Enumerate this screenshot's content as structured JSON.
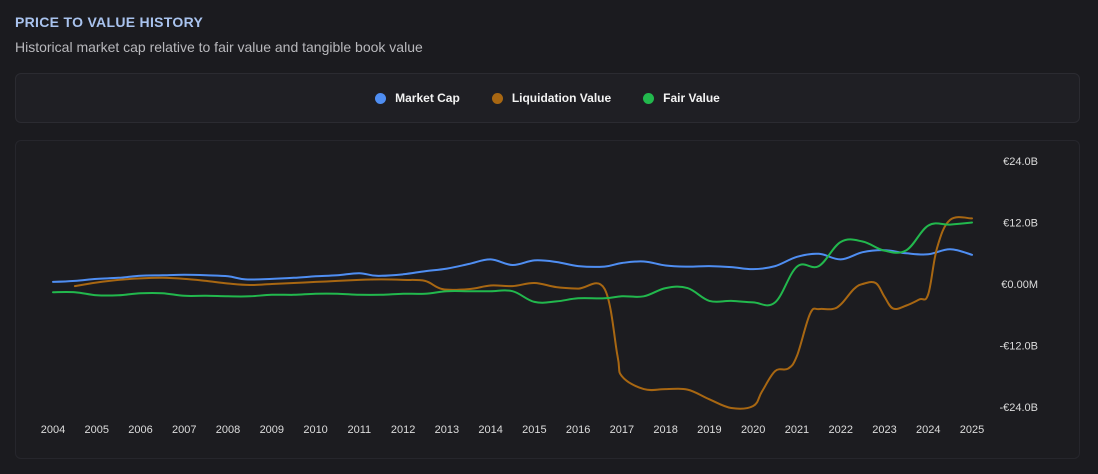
{
  "header": {
    "title": "PRICE TO VALUE HISTORY",
    "subtitle": "Historical market cap relative to fair value and tangible book value"
  },
  "chart_data": {
    "type": "line",
    "title": "PRICE TO VALUE HISTORY",
    "ylim": [
      -24,
      24
    ],
    "y_ticks": [
      {
        "value": 24,
        "label": "€24.0B"
      },
      {
        "value": 12,
        "label": "€12.0B"
      },
      {
        "value": 0,
        "label": "€0.00M"
      },
      {
        "value": -12,
        "label": "-€12.0B"
      },
      {
        "value": -24,
        "label": "-€24.0B"
      }
    ],
    "xlim": [
      2004,
      2025
    ],
    "x_ticks": [
      "2004",
      "2005",
      "2006",
      "2007",
      "2008",
      "2009",
      "2010",
      "2011",
      "2012",
      "2013",
      "2014",
      "2015",
      "2016",
      "2017",
      "2018",
      "2019",
      "2020",
      "2021",
      "2022",
      "2023",
      "2024",
      "2025"
    ],
    "series": [
      {
        "name": "Market Cap",
        "color": "#4f8ef2",
        "points": [
          [
            2004.0,
            0.4
          ],
          [
            2004.5,
            0.6
          ],
          [
            2005.0,
            1.0
          ],
          [
            2005.5,
            1.2
          ],
          [
            2006.0,
            1.6
          ],
          [
            2006.5,
            1.7
          ],
          [
            2007.0,
            1.8
          ],
          [
            2007.5,
            1.7
          ],
          [
            2008.0,
            1.5
          ],
          [
            2008.4,
            0.9
          ],
          [
            2009.0,
            1.0
          ],
          [
            2009.5,
            1.2
          ],
          [
            2010.0,
            1.5
          ],
          [
            2010.5,
            1.7
          ],
          [
            2011.0,
            2.1
          ],
          [
            2011.4,
            1.6
          ],
          [
            2012.0,
            1.9
          ],
          [
            2012.5,
            2.5
          ],
          [
            2013.0,
            3.0
          ],
          [
            2013.5,
            3.9
          ],
          [
            2014.0,
            4.8
          ],
          [
            2014.5,
            3.7
          ],
          [
            2015.0,
            4.6
          ],
          [
            2015.5,
            4.3
          ],
          [
            2016.0,
            3.5
          ],
          [
            2016.6,
            3.4
          ],
          [
            2017.0,
            4.1
          ],
          [
            2017.5,
            4.4
          ],
          [
            2018.0,
            3.6
          ],
          [
            2018.5,
            3.4
          ],
          [
            2019.0,
            3.5
          ],
          [
            2019.5,
            3.3
          ],
          [
            2020.0,
            2.9
          ],
          [
            2020.5,
            3.5
          ],
          [
            2021.0,
            5.3
          ],
          [
            2021.5,
            5.9
          ],
          [
            2022.0,
            4.8
          ],
          [
            2022.5,
            6.2
          ],
          [
            2023.0,
            6.6
          ],
          [
            2023.5,
            6.0
          ],
          [
            2024.0,
            5.8
          ],
          [
            2024.5,
            6.8
          ],
          [
            2025.0,
            5.7
          ]
        ]
      },
      {
        "name": "Liquidation Value",
        "color": "#a86712",
        "points": [
          [
            2004.5,
            -0.4
          ],
          [
            2005.0,
            0.3
          ],
          [
            2005.5,
            0.8
          ],
          [
            2006.0,
            1.1
          ],
          [
            2006.5,
            1.2
          ],
          [
            2007.0,
            1.0
          ],
          [
            2007.5,
            0.6
          ],
          [
            2008.0,
            0.1
          ],
          [
            2008.5,
            -0.2
          ],
          [
            2009.0,
            0.0
          ],
          [
            2009.5,
            0.2
          ],
          [
            2010.0,
            0.4
          ],
          [
            2010.5,
            0.6
          ],
          [
            2011.0,
            0.8
          ],
          [
            2011.5,
            0.9
          ],
          [
            2012.0,
            0.8
          ],
          [
            2012.5,
            0.6
          ],
          [
            2012.9,
            -1.0
          ],
          [
            2013.5,
            -1.0
          ],
          [
            2014.0,
            -0.3
          ],
          [
            2014.5,
            -0.4
          ],
          [
            2015.0,
            0.2
          ],
          [
            2015.5,
            -0.6
          ],
          [
            2016.0,
            -0.9
          ],
          [
            2016.6,
            -0.9
          ],
          [
            2016.9,
            -14.0
          ],
          [
            2017.0,
            -18.0
          ],
          [
            2017.5,
            -20.5
          ],
          [
            2018.0,
            -20.5
          ],
          [
            2018.5,
            -20.6
          ],
          [
            2019.0,
            -22.5
          ],
          [
            2019.5,
            -24.2
          ],
          [
            2020.0,
            -23.8
          ],
          [
            2020.2,
            -21.0
          ],
          [
            2020.5,
            -17.0
          ],
          [
            2020.8,
            -16.5
          ],
          [
            2021.0,
            -14.0
          ],
          [
            2021.3,
            -5.8
          ],
          [
            2021.5,
            -4.9
          ],
          [
            2021.8,
            -4.9
          ],
          [
            2022.0,
            -4.0
          ],
          [
            2022.3,
            -1.0
          ],
          [
            2022.5,
            0.0
          ],
          [
            2022.8,
            0.2
          ],
          [
            2023.0,
            -2.5
          ],
          [
            2023.2,
            -4.8
          ],
          [
            2023.5,
            -4.2
          ],
          [
            2023.8,
            -3.0
          ],
          [
            2024.0,
            -2.0
          ],
          [
            2024.2,
            7.0
          ],
          [
            2024.5,
            12.5
          ],
          [
            2025.0,
            12.8
          ]
        ]
      },
      {
        "name": "Fair Value",
        "color": "#22b84d",
        "points": [
          [
            2004.0,
            -1.6
          ],
          [
            2004.5,
            -1.6
          ],
          [
            2005.0,
            -2.2
          ],
          [
            2005.5,
            -2.2
          ],
          [
            2006.0,
            -1.8
          ],
          [
            2006.5,
            -1.8
          ],
          [
            2007.0,
            -2.3
          ],
          [
            2007.5,
            -2.3
          ],
          [
            2008.0,
            -2.4
          ],
          [
            2008.5,
            -2.4
          ],
          [
            2009.0,
            -2.1
          ],
          [
            2009.5,
            -2.1
          ],
          [
            2010.0,
            -1.9
          ],
          [
            2010.5,
            -1.9
          ],
          [
            2011.0,
            -2.1
          ],
          [
            2011.5,
            -2.1
          ],
          [
            2012.0,
            -1.9
          ],
          [
            2012.5,
            -1.9
          ],
          [
            2013.0,
            -1.4
          ],
          [
            2013.5,
            -1.4
          ],
          [
            2014.0,
            -1.4
          ],
          [
            2014.5,
            -1.4
          ],
          [
            2015.0,
            -3.5
          ],
          [
            2015.5,
            -3.4
          ],
          [
            2016.0,
            -2.8
          ],
          [
            2016.6,
            -2.8
          ],
          [
            2017.0,
            -2.4
          ],
          [
            2017.5,
            -2.4
          ],
          [
            2018.0,
            -0.8
          ],
          [
            2018.5,
            -0.8
          ],
          [
            2019.0,
            -3.3
          ],
          [
            2019.5,
            -3.3
          ],
          [
            2020.0,
            -3.6
          ],
          [
            2020.5,
            -3.6
          ],
          [
            2021.0,
            3.4
          ],
          [
            2021.5,
            3.5
          ],
          [
            2022.0,
            8.2
          ],
          [
            2022.5,
            8.3
          ],
          [
            2023.0,
            6.5
          ],
          [
            2023.5,
            6.6
          ],
          [
            2024.0,
            11.4
          ],
          [
            2024.5,
            11.6
          ],
          [
            2025.0,
            12.0
          ]
        ]
      }
    ]
  }
}
